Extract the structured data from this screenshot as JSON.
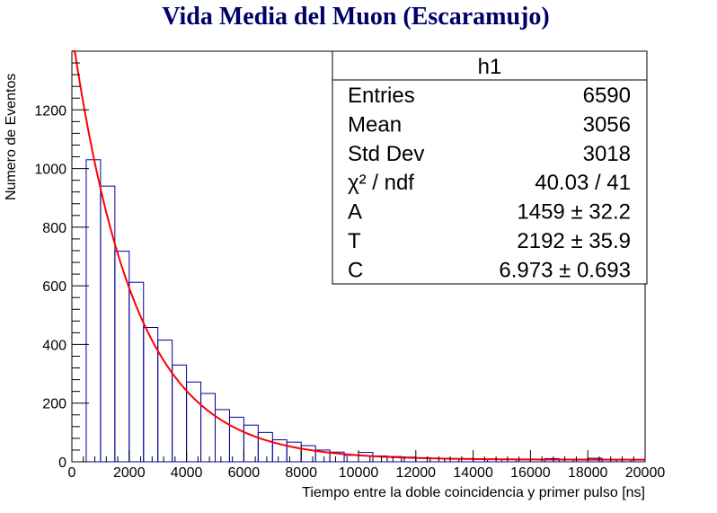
{
  "chart_data": {
    "type": "histogram",
    "title": "Vida  Media del Muon (Escaramujo)",
    "xlabel": "Tiempo entre la doble coincidencia y primer pulso [ns]",
    "ylabel": "Numero de Eventos",
    "xlim": [
      0,
      20000
    ],
    "ylim": [
      0,
      1400
    ],
    "x_ticks": [
      0,
      2000,
      4000,
      6000,
      8000,
      10000,
      12000,
      14000,
      16000,
      18000,
      20000
    ],
    "y_ticks": [
      0,
      200,
      400,
      600,
      800,
      1000,
      1200
    ],
    "grid": false,
    "bin_width": 500,
    "bins": [
      {
        "x": 500,
        "value": 1030
      },
      {
        "x": 1000,
        "value": 940
      },
      {
        "x": 1500,
        "value": 718
      },
      {
        "x": 2000,
        "value": 612
      },
      {
        "x": 2500,
        "value": 458
      },
      {
        "x": 3000,
        "value": 415
      },
      {
        "x": 3500,
        "value": 330
      },
      {
        "x": 4000,
        "value": 272
      },
      {
        "x": 4500,
        "value": 233
      },
      {
        "x": 5000,
        "value": 178
      },
      {
        "x": 5500,
        "value": 152
      },
      {
        "x": 6000,
        "value": 125
      },
      {
        "x": 6500,
        "value": 100
      },
      {
        "x": 7000,
        "value": 75
      },
      {
        "x": 7500,
        "value": 67
      },
      {
        "x": 8000,
        "value": 55
      },
      {
        "x": 8500,
        "value": 40
      },
      {
        "x": 9000,
        "value": 33
      },
      {
        "x": 9500,
        "value": 22
      },
      {
        "x": 10000,
        "value": 32
      },
      {
        "x": 10500,
        "value": 20
      },
      {
        "x": 11000,
        "value": 18
      },
      {
        "x": 11500,
        "value": 16
      },
      {
        "x": 12000,
        "value": 14
      },
      {
        "x": 12500,
        "value": 11
      },
      {
        "x": 13000,
        "value": 9
      },
      {
        "x": 13500,
        "value": 11
      },
      {
        "x": 14000,
        "value": 8
      },
      {
        "x": 14500,
        "value": 9
      },
      {
        "x": 15000,
        "value": 8
      },
      {
        "x": 15500,
        "value": 7
      },
      {
        "x": 16000,
        "value": 9
      },
      {
        "x": 16500,
        "value": 11
      },
      {
        "x": 17000,
        "value": 7
      },
      {
        "x": 17500,
        "value": 9
      },
      {
        "x": 18000,
        "value": 12
      },
      {
        "x": 18500,
        "value": 8
      },
      {
        "x": 19000,
        "value": 7
      },
      {
        "x": 19500,
        "value": 6
      }
    ],
    "fit": {
      "function": "A*exp(-x/T)+C",
      "A": 1459,
      "T": 2192,
      "C": 6.973,
      "x_range": [
        0,
        20000
      ]
    },
    "colors": {
      "histogram": "#000099",
      "fit": "#ff0000",
      "title": "#000066",
      "axis": "#000000"
    }
  },
  "stats_box": {
    "title": "h1",
    "rows": [
      {
        "label": "Entries",
        "value": "6590"
      },
      {
        "label": "Mean",
        "value": "3056"
      },
      {
        "label": "Std Dev",
        "value": "3018"
      },
      {
        "label": "χ² / ndf",
        "value": "40.03 / 41"
      },
      {
        "label": "A",
        "value": "1459 ± 32.2"
      },
      {
        "label": "T",
        "value": "2192 ± 35.9"
      },
      {
        "label": "C",
        "value": "6.973 ± 0.693"
      }
    ]
  }
}
